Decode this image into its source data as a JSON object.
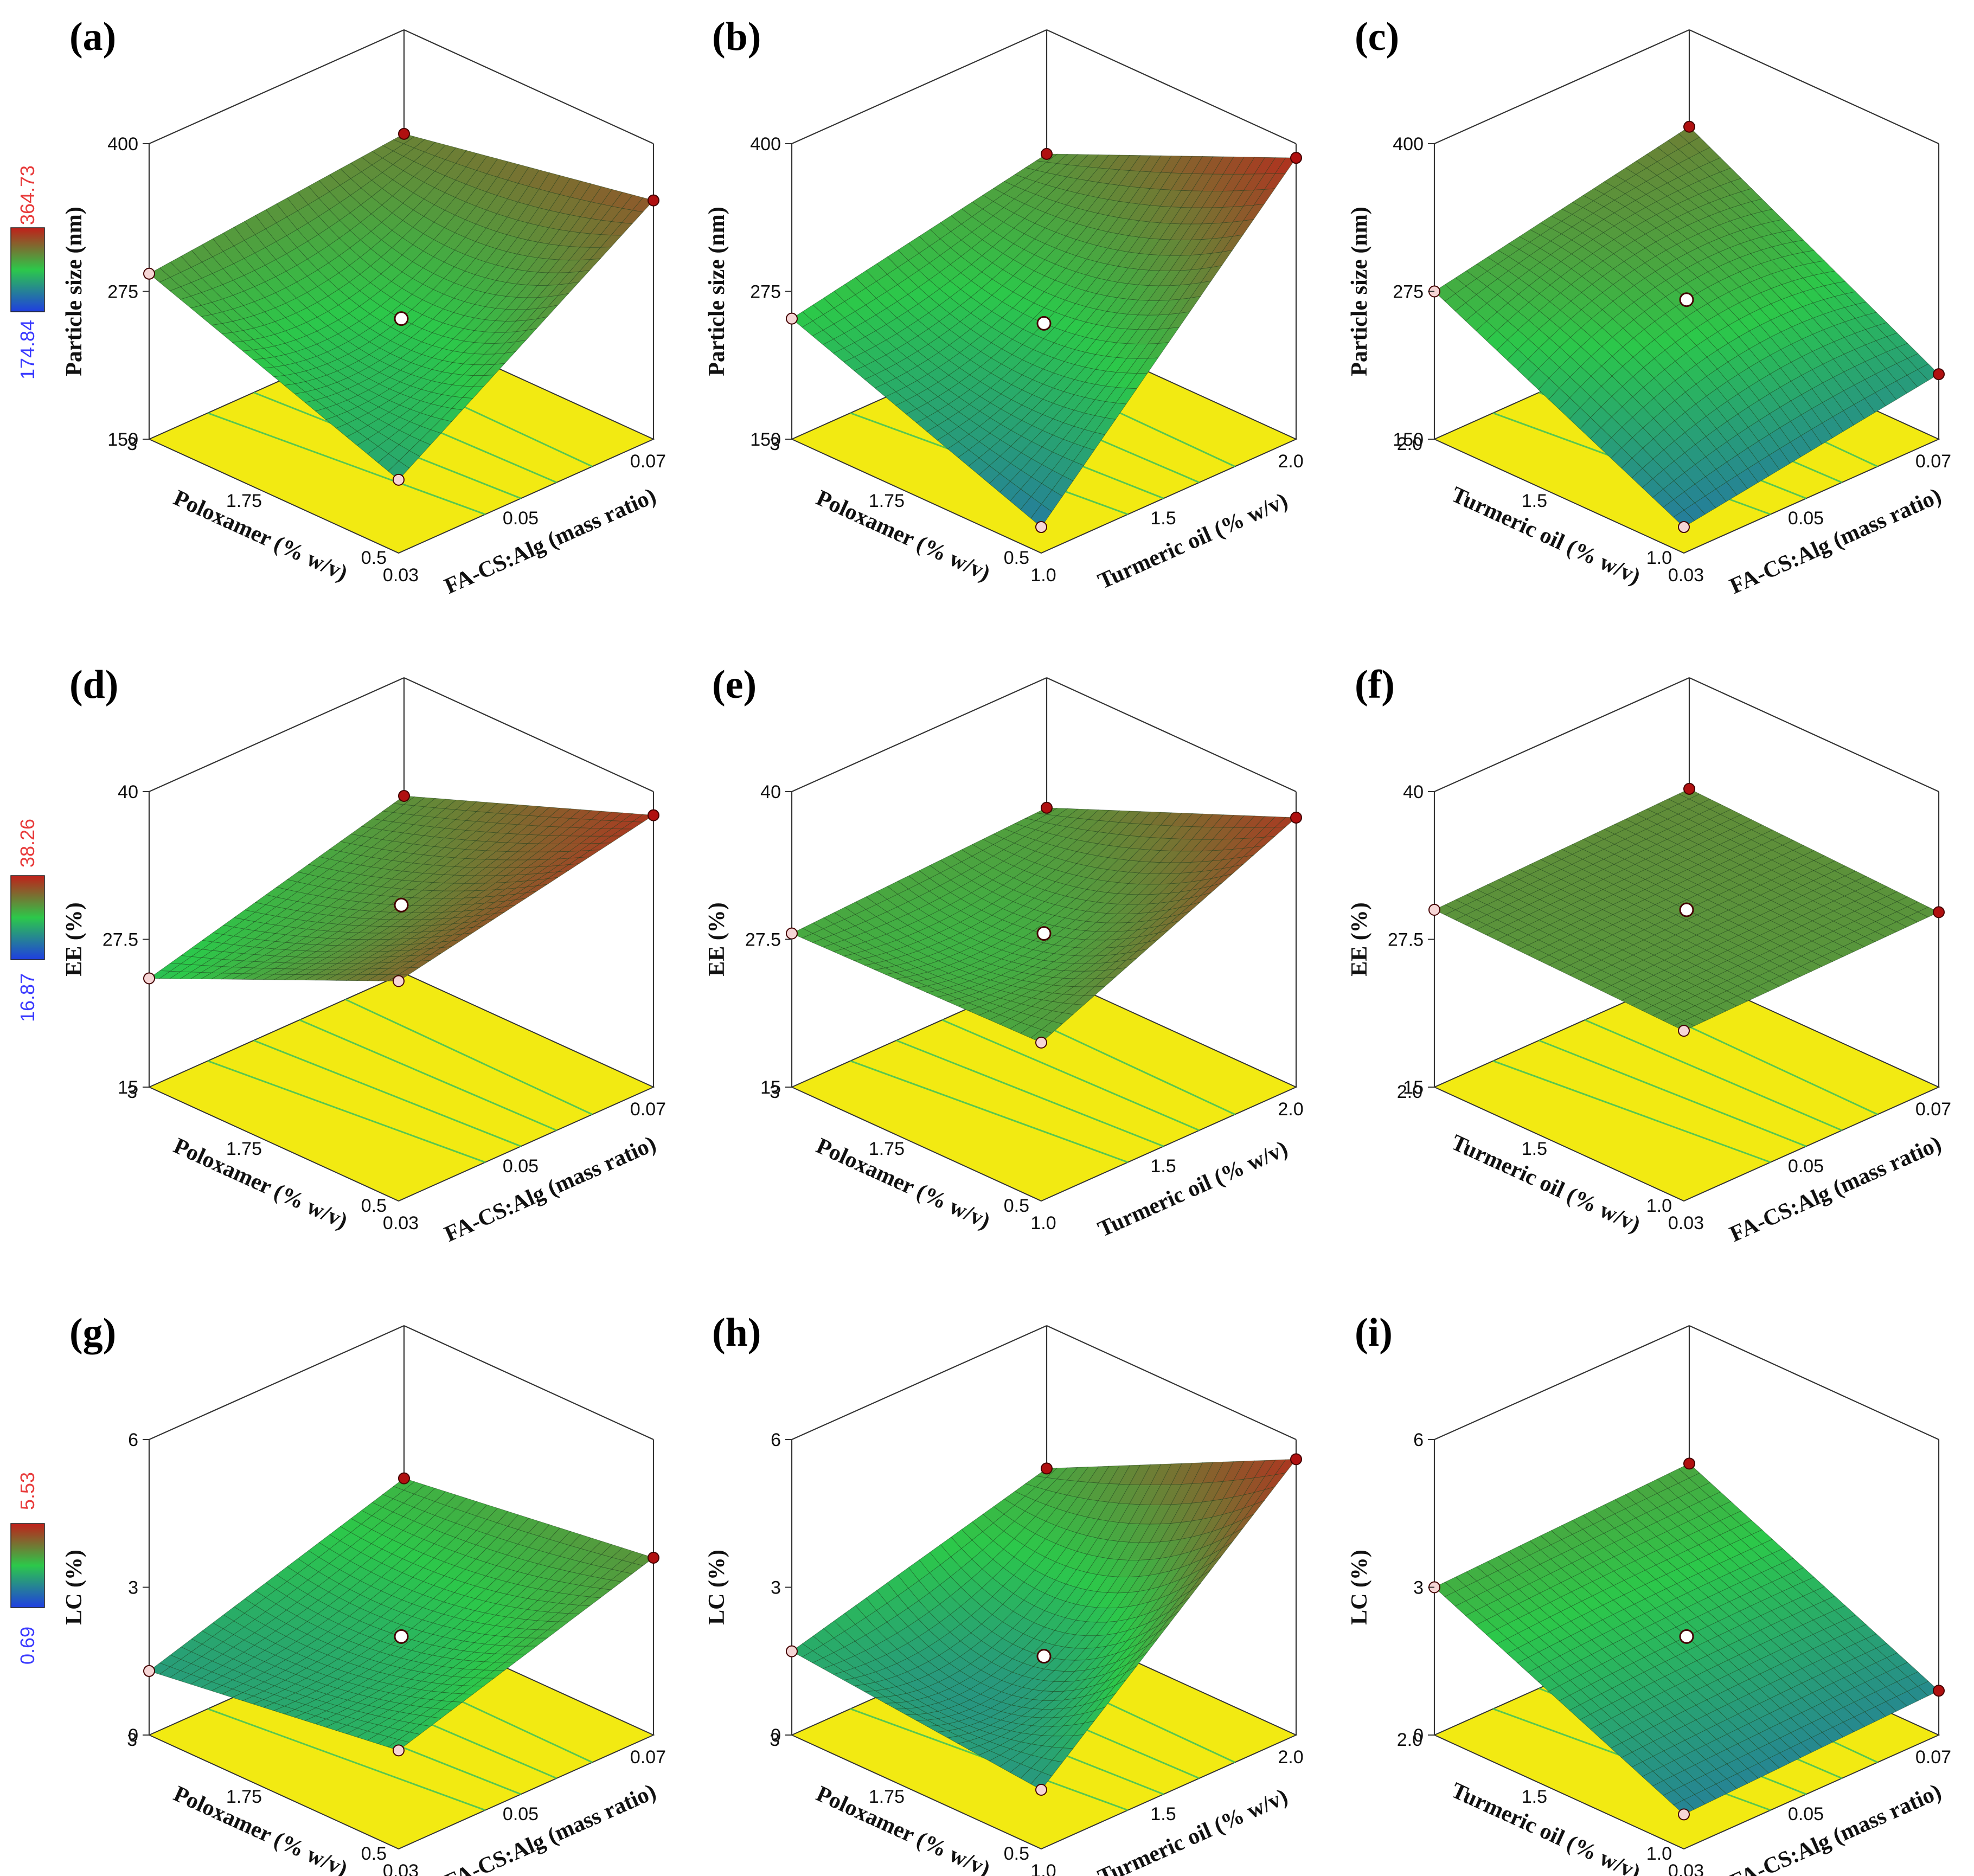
{
  "colors": {
    "surface_low": "#1f3ee0",
    "surface_mid": "#2cc84a",
    "surface_high": "#c0201a",
    "floor": "#f2ea12",
    "contour": "#3ec25a",
    "max_label": "#e83a3a",
    "min_label": "#3a3aff"
  },
  "chart_data": [
    {
      "panel": "(a)",
      "type": "surface3d",
      "zlabel": "Particle size (nm)",
      "zticks": [
        "400",
        "275",
        "150"
      ],
      "zlim": [
        150,
        400
      ],
      "xlabel": "Poloxamer (% w/v)",
      "xticks": [
        "3",
        "1.75",
        "0.5"
      ],
      "xlim": [
        0.5,
        3
      ],
      "ylabel": "FA-CS:Alg (mass ratio)",
      "yticks": [
        "0.03",
        "0.05",
        "0.07"
      ],
      "ylim": [
        0.03,
        0.07
      ],
      "corners": {
        "x3_y003": 290,
        "x3_y007": 312,
        "x05_y003": 212,
        "x05_y007": 352
      },
      "center": 252,
      "colorbar": {
        "max": "364.73",
        "min": "174.84"
      }
    },
    {
      "panel": "(b)",
      "type": "surface3d",
      "zlabel": "Particle size (nm)",
      "zticks": [
        "400",
        "275",
        "150"
      ],
      "zlim": [
        150,
        400
      ],
      "xlabel": "Poloxamer (% w/v)",
      "xticks": [
        "3",
        "1.75",
        "0.5"
      ],
      "xlim": [
        0.5,
        3
      ],
      "ylabel": "Turmeric oil (% w/v)",
      "yticks": [
        "1.0",
        "1.5",
        "2.0"
      ],
      "ylim": [
        1,
        2
      ],
      "corners": {
        "x3_y1": 252,
        "x3_y2": 295,
        "x05_y1": 172,
        "x05_y2": 388
      },
      "center": 248
    },
    {
      "panel": "(c)",
      "type": "surface3d",
      "zlabel": "Particle size (nm)",
      "zticks": [
        "400",
        "275",
        "150"
      ],
      "zlim": [
        150,
        400
      ],
      "xlabel": "Turmeric oil (% w/v)",
      "xticks": [
        "2.0",
        "1.5",
        "1.0"
      ],
      "xlim": [
        1,
        2
      ],
      "ylabel": "FA-CS:Alg (mass ratio)",
      "yticks": [
        "0.03",
        "0.05",
        "0.07"
      ],
      "ylim": [
        0.03,
        0.07
      ],
      "corners": {
        "x2_y003": 275,
        "x2_y007": 318,
        "x1_y003": 172,
        "x1_y007": 205
      },
      "center": 268
    },
    {
      "panel": "(d)",
      "type": "surface3d",
      "zlabel": "EE (%)",
      "zticks": [
        "40",
        "27.5",
        "15"
      ],
      "zlim": [
        15,
        40
      ],
      "xlabel": "Poloxamer (% w/v)",
      "xticks": [
        "3",
        "1.75",
        "0.5"
      ],
      "xlim": [
        0.5,
        3
      ],
      "ylabel": "FA-CS:Alg (mass ratio)",
      "yticks": [
        "0.03",
        "0.05",
        "0.07"
      ],
      "ylim": [
        0.03,
        0.07
      ],
      "corners": {
        "x3_y003": 24.2,
        "x3_y007": 30.0,
        "x05_y003": 33.6,
        "x05_y007": 38.0
      },
      "center": 30.4,
      "colorbar": {
        "max": "38.26",
        "min": "16.87"
      }
    },
    {
      "panel": "(e)",
      "type": "surface3d",
      "zlabel": "EE (%)",
      "zticks": [
        "40",
        "27.5",
        "15"
      ],
      "zlim": [
        15,
        40
      ],
      "xlabel": "Poloxamer (% w/v)",
      "xticks": [
        "3",
        "1.75",
        "0.5"
      ],
      "xlim": [
        0.5,
        3
      ],
      "ylabel": "Turmeric oil (% w/v)",
      "yticks": [
        "1.0",
        "1.5",
        "2.0"
      ],
      "ylim": [
        1,
        2
      ],
      "corners": {
        "x3_y1": 28.0,
        "x3_y2": 29.0,
        "x05_y1": 28.4,
        "x05_y2": 37.8
      },
      "center": 28.0
    },
    {
      "panel": "(f)",
      "type": "surface3d",
      "zlabel": "EE (%)",
      "zticks": [
        "40",
        "27.5",
        "15"
      ],
      "zlim": [
        15,
        40
      ],
      "xlabel": "Turmeric oil (% w/v)",
      "xticks": [
        "2.0",
        "1.5",
        "1.0"
      ],
      "xlim": [
        1,
        2
      ],
      "ylabel": "FA-CS:Alg (mass ratio)",
      "yticks": [
        "0.03",
        "0.05",
        "0.07"
      ],
      "ylim": [
        0.03,
        0.07
      ],
      "corners": {
        "x2_y003": 30.0,
        "x2_y007": 30.6,
        "x1_y003": 29.4,
        "x1_y007": 29.8
      },
      "center": 30.0
    },
    {
      "panel": "(g)",
      "type": "surface3d",
      "zlabel": "LC (%)",
      "zticks": [
        "6",
        "3",
        "0"
      ],
      "zlim": [
        0,
        6
      ],
      "xlabel": "Poloxamer (% w/v)",
      "xticks": [
        "3",
        "1.75",
        "0.5"
      ],
      "xlim": [
        0.5,
        3
      ],
      "ylabel": "FA-CS:Alg (mass ratio)",
      "yticks": [
        "0.03",
        "0.05",
        "0.07"
      ],
      "ylim": [
        0.03,
        0.07
      ],
      "corners": {
        "x3_y003": 1.3,
        "x3_y007": 2.9,
        "x05_y003": 2.0,
        "x05_y007": 3.6
      },
      "center": 2.0,
      "colorbar": {
        "max": "5.53",
        "min": "0.69"
      }
    },
    {
      "panel": "(h)",
      "type": "surface3d",
      "zlabel": "LC (%)",
      "zticks": [
        "6",
        "3",
        "0"
      ],
      "zlim": [
        0,
        6
      ],
      "xlabel": "Poloxamer (% w/v)",
      "xticks": [
        "3",
        "1.75",
        "0.5"
      ],
      "xlim": [
        0.5,
        3
      ],
      "ylabel": "Turmeric oil (% w/v)",
      "yticks": [
        "1.0",
        "1.5",
        "2.0"
      ],
      "ylim": [
        1,
        2
      ],
      "corners": {
        "x3_y1": 1.7,
        "x3_y2": 3.1,
        "x05_y1": 1.2,
        "x05_y2": 5.6
      },
      "center": 1.6
    },
    {
      "panel": "(i)",
      "type": "surface3d",
      "zlabel": "LC (%)",
      "zticks": [
        "6",
        "3",
        "0"
      ],
      "zlim": [
        0,
        6
      ],
      "xlabel": "Turmeric oil (% w/v)",
      "xticks": [
        "2.0",
        "1.5",
        "1.0"
      ],
      "xlim": [
        1,
        2
      ],
      "ylabel": "FA-CS:Alg (mass ratio)",
      "yticks": [
        "0.03",
        "0.05",
        "0.07"
      ],
      "ylim": [
        0.03,
        0.07
      ],
      "corners": {
        "x2_y003": 3.0,
        "x2_y007": 3.2,
        "x1_y003": 0.7,
        "x1_y007": 0.9
      },
      "center": 2.0
    }
  ]
}
